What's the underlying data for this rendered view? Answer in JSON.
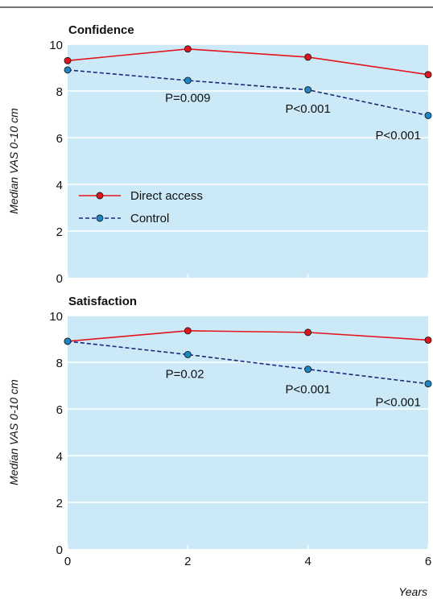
{
  "figure": {
    "xlabel": "Years",
    "colors": {
      "panel_bg": "#cce9f8",
      "grid": "#ffffff",
      "direct": "#e3151c",
      "control": "#1b2a78",
      "control_marker": "#1a88c4",
      "rule": "#222222"
    }
  },
  "chart_data": [
    {
      "type": "line",
      "title": "Confidence",
      "ylabel": "Median VAS 0-10 cm",
      "x": [
        0,
        2,
        4,
        6
      ],
      "xlim": [
        0,
        6
      ],
      "ylim": [
        0,
        10
      ],
      "yticks": [
        0,
        2,
        4,
        6,
        8,
        10
      ],
      "xticks": [],
      "grid": true,
      "legend": "center-left",
      "series": [
        {
          "name": "Direct access",
          "values": [
            9.3,
            9.8,
            9.45,
            8.7
          ],
          "style": "solid"
        },
        {
          "name": "Control",
          "values": [
            8.9,
            8.45,
            8.05,
            6.95
          ],
          "style": "dashed"
        }
      ],
      "annotations": [
        {
          "text": "P=0.009",
          "x": 2,
          "y": 7.7
        },
        {
          "text": "P<0.001",
          "x": 4,
          "y": 7.25
        },
        {
          "text": "P<0.001",
          "x": 5.5,
          "y": 6.1
        }
      ]
    },
    {
      "type": "line",
      "title": "Satisfaction",
      "ylabel": "Median VAS 0-10 cm",
      "x": [
        0,
        2,
        4,
        6
      ],
      "xlim": [
        0,
        6
      ],
      "ylim": [
        0,
        10
      ],
      "yticks": [
        0,
        2,
        4,
        6,
        8,
        10
      ],
      "xticks": [
        0,
        2,
        4,
        6
      ],
      "grid": true,
      "legend": "none",
      "series": [
        {
          "name": "Direct access",
          "values": [
            8.9,
            9.35,
            9.28,
            8.95
          ],
          "style": "solid"
        },
        {
          "name": "Control",
          "values": [
            8.9,
            8.33,
            7.7,
            7.08
          ],
          "style": "dashed"
        }
      ],
      "annotations": [
        {
          "text": "P=0.02",
          "x": 1.95,
          "y": 7.5
        },
        {
          "text": "P<0.001",
          "x": 4,
          "y": 6.85
        },
        {
          "text": "P<0.001",
          "x": 5.5,
          "y": 6.3
        }
      ]
    }
  ]
}
